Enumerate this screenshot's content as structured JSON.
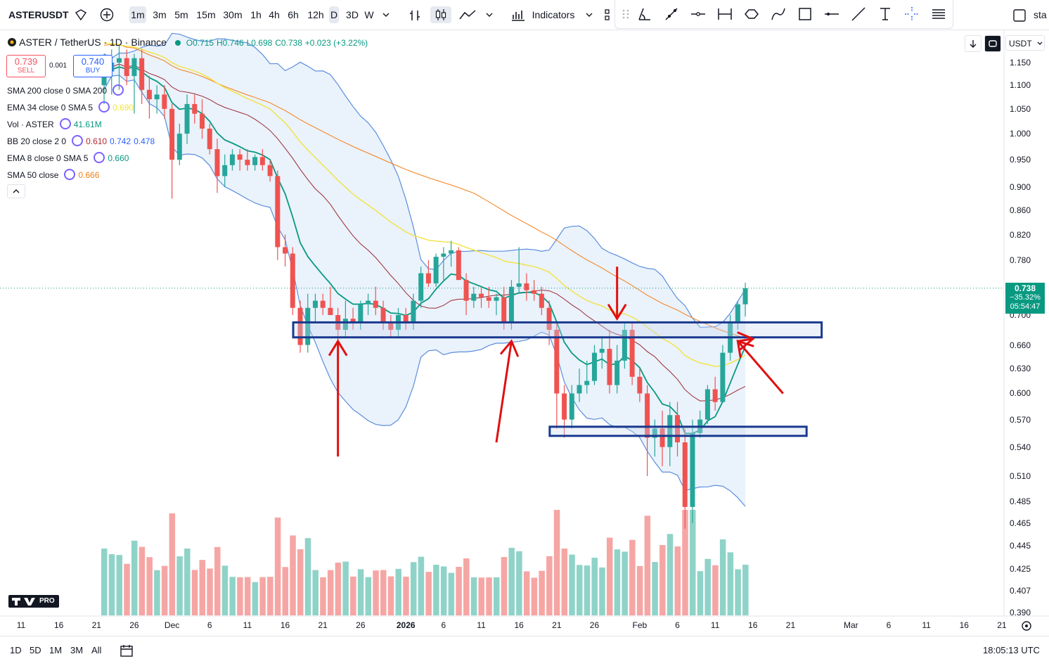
{
  "toolbar": {
    "symbol": "ASTERUSDT",
    "intervals": [
      "1m",
      "3m",
      "5m",
      "15m",
      "30m",
      "1h",
      "4h",
      "6h",
      "12h",
      "D",
      "3D",
      "W"
    ],
    "active_interval": "1m",
    "indicators_label": "Indicators",
    "right_text": "sta"
  },
  "legend": {
    "title": "ASTER / TetherUS · 1D · Binance",
    "ohlc": {
      "o": "O0.715",
      "h": "H0.746",
      "l": "L0.698",
      "c": "C0.738",
      "chg": "+0.023 (+3.22%)"
    },
    "sell": {
      "price": "0.739",
      "label": "SELL"
    },
    "spread": "0.001",
    "buy": {
      "price": "0.740",
      "label": "BUY"
    },
    "indicators": [
      {
        "name": "SMA 200 close 0 SMA 200",
        "values": [],
        "colors": []
      },
      {
        "name": "EMA 34 close 0 SMA 5",
        "values": [
          "0.690"
        ],
        "colors": [
          "#f2e33f"
        ]
      },
      {
        "name": "Vol · ASTER",
        "values": [
          "41.61M"
        ],
        "colors": [
          "#089981"
        ]
      },
      {
        "name": "BB 20 close 2 0",
        "values": [
          "0.610",
          "0.742",
          "0.478"
        ],
        "colors": [
          "#b22833",
          "#2962ff",
          "#2962ff"
        ]
      },
      {
        "name": "EMA 8 close 0 SMA 5",
        "values": [
          "0.660"
        ],
        "colors": [
          "#089981"
        ]
      },
      {
        "name": "SMA 50 close",
        "values": [
          "0.666"
        ],
        "colors": [
          "#f57f17"
        ]
      }
    ]
  },
  "right_controls": {
    "currency": "USDT"
  },
  "price_tag": {
    "price": "0.738",
    "change": "−35.32%",
    "countdown": "05:54:47"
  },
  "bottombar": {
    "ranges": [
      "1D",
      "5D",
      "1M",
      "3M",
      "All"
    ],
    "clock": "18:05:13 UTC"
  },
  "colors": {
    "up": "#26a69a",
    "down": "#ef5350",
    "band_fill": "#e3edfa",
    "band_line": "#5b8ede",
    "zone": "#1a3a8f",
    "arrow": "#e01010"
  },
  "icons": [
    "plus-icon",
    "bar-type-icon",
    "candle-icon",
    "line-icon",
    "indicators-icon",
    "trend-line-icon",
    "brush-icon",
    "measure-icon",
    "shape-icon",
    "rect-icon",
    "text-icon",
    "crosshair-icon",
    "menu-icon",
    "calendar-icon",
    "settings-icon"
  ],
  "chart_data": {
    "type": "candlestick",
    "y_axis": {
      "ticks": [
        "1.150",
        "1.100",
        "1.050",
        "1.000",
        "0.950",
        "0.900",
        "0.860",
        "0.820",
        "0.780",
        "0.700",
        "0.660",
        "0.630",
        "0.600",
        "0.570",
        "0.540",
        "0.510",
        "0.485",
        "0.465",
        "0.445",
        "0.425",
        "0.407",
        "0.390"
      ],
      "scale": "log"
    },
    "x_axis": {
      "ticks": [
        "11",
        "16",
        "21",
        "26",
        "Dec",
        "6",
        "11",
        "16",
        "21",
        "26",
        "2026",
        "6",
        "11",
        "16",
        "21",
        "26",
        "Feb",
        "6",
        "11",
        "16",
        "21",
        "Mar",
        "6",
        "11",
        "16",
        "21"
      ]
    },
    "candles": [
      {
        "date": "2025-11-22",
        "o": 1.1,
        "h": 1.17,
        "l": 1.06,
        "c": 1.13
      },
      {
        "date": "2025-11-23",
        "o": 1.13,
        "h": 1.18,
        "l": 1.08,
        "c": 1.15
      },
      {
        "date": "2025-11-24",
        "o": 1.15,
        "h": 1.19,
        "l": 1.09,
        "c": 1.16
      },
      {
        "date": "2025-11-25",
        "o": 1.16,
        "h": 1.18,
        "l": 1.1,
        "c": 1.12
      },
      {
        "date": "2025-11-26",
        "o": 1.12,
        "h": 1.17,
        "l": 1.04,
        "c": 1.16
      },
      {
        "date": "2025-11-27",
        "o": 1.16,
        "h": 1.18,
        "l": 1.06,
        "c": 1.09
      },
      {
        "date": "2025-11-28",
        "o": 1.09,
        "h": 1.12,
        "l": 1.03,
        "c": 1.07
      },
      {
        "date": "2025-11-29",
        "o": 1.07,
        "h": 1.1,
        "l": 1.04,
        "c": 1.08
      },
      {
        "date": "2025-11-30",
        "o": 1.08,
        "h": 1.1,
        "l": 1.03,
        "c": 1.05
      },
      {
        "date": "2025-12-01",
        "o": 1.05,
        "h": 1.06,
        "l": 0.88,
        "c": 0.95
      },
      {
        "date": "2025-12-02",
        "o": 0.95,
        "h": 1.02,
        "l": 0.94,
        "c": 1.0
      },
      {
        "date": "2025-12-03",
        "o": 1.0,
        "h": 1.08,
        "l": 0.98,
        "c": 1.06
      },
      {
        "date": "2025-12-04",
        "o": 1.06,
        "h": 1.08,
        "l": 1.02,
        "c": 1.04
      },
      {
        "date": "2025-12-05",
        "o": 1.04,
        "h": 1.07,
        "l": 0.99,
        "c": 1.01
      },
      {
        "date": "2025-12-06",
        "o": 1.01,
        "h": 1.02,
        "l": 0.96,
        "c": 0.97
      },
      {
        "date": "2025-12-07",
        "o": 0.97,
        "h": 0.99,
        "l": 0.89,
        "c": 0.92
      },
      {
        "date": "2025-12-08",
        "o": 0.92,
        "h": 0.96,
        "l": 0.9,
        "c": 0.94
      },
      {
        "date": "2025-12-09",
        "o": 0.94,
        "h": 0.97,
        "l": 0.93,
        "c": 0.96
      },
      {
        "date": "2025-12-10",
        "o": 0.96,
        "h": 0.97,
        "l": 0.93,
        "c": 0.95
      },
      {
        "date": "2025-12-11",
        "o": 0.95,
        "h": 0.97,
        "l": 0.93,
        "c": 0.94
      },
      {
        "date": "2025-12-12",
        "o": 0.94,
        "h": 0.96,
        "l": 0.93,
        "c": 0.955
      },
      {
        "date": "2025-12-13",
        "o": 0.955,
        "h": 0.97,
        "l": 0.93,
        "c": 0.94
      },
      {
        "date": "2025-12-14",
        "o": 0.94,
        "h": 0.95,
        "l": 0.91,
        "c": 0.92
      },
      {
        "date": "2025-12-15",
        "o": 0.92,
        "h": 0.93,
        "l": 0.78,
        "c": 0.8
      },
      {
        "date": "2025-12-16",
        "o": 0.8,
        "h": 0.82,
        "l": 0.77,
        "c": 0.79
      },
      {
        "date": "2025-12-17",
        "o": 0.79,
        "h": 0.8,
        "l": 0.7,
        "c": 0.71
      },
      {
        "date": "2025-12-18",
        "o": 0.71,
        "h": 0.72,
        "l": 0.65,
        "c": 0.66
      },
      {
        "date": "2025-12-19",
        "o": 0.66,
        "h": 0.73,
        "l": 0.65,
        "c": 0.71
      },
      {
        "date": "2025-12-20",
        "o": 0.71,
        "h": 0.73,
        "l": 0.69,
        "c": 0.72
      },
      {
        "date": "2025-12-21",
        "o": 0.72,
        "h": 0.73,
        "l": 0.7,
        "c": 0.71
      },
      {
        "date": "2025-12-22",
        "o": 0.71,
        "h": 0.74,
        "l": 0.7,
        "c": 0.7
      },
      {
        "date": "2025-12-23",
        "o": 0.7,
        "h": 0.71,
        "l": 0.66,
        "c": 0.68
      },
      {
        "date": "2025-12-24",
        "o": 0.68,
        "h": 0.72,
        "l": 0.67,
        "c": 0.695
      },
      {
        "date": "2025-12-25",
        "o": 0.695,
        "h": 0.71,
        "l": 0.68,
        "c": 0.69
      },
      {
        "date": "2025-12-26",
        "o": 0.69,
        "h": 0.72,
        "l": 0.68,
        "c": 0.715
      },
      {
        "date": "2025-12-27",
        "o": 0.715,
        "h": 0.73,
        "l": 0.7,
        "c": 0.72
      },
      {
        "date": "2025-12-28",
        "o": 0.72,
        "h": 0.74,
        "l": 0.7,
        "c": 0.71
      },
      {
        "date": "2025-12-29",
        "o": 0.71,
        "h": 0.72,
        "l": 0.68,
        "c": 0.69
      },
      {
        "date": "2025-12-30",
        "o": 0.69,
        "h": 0.7,
        "l": 0.67,
        "c": 0.68
      },
      {
        "date": "2025-12-31",
        "o": 0.68,
        "h": 0.71,
        "l": 0.67,
        "c": 0.7
      },
      {
        "date": "2026-01-01",
        "o": 0.7,
        "h": 0.71,
        "l": 0.68,
        "c": 0.69
      },
      {
        "date": "2026-01-02",
        "o": 0.69,
        "h": 0.73,
        "l": 0.68,
        "c": 0.72
      },
      {
        "date": "2026-01-03",
        "o": 0.72,
        "h": 0.77,
        "l": 0.71,
        "c": 0.76
      },
      {
        "date": "2026-01-04",
        "o": 0.76,
        "h": 0.78,
        "l": 0.74,
        "c": 0.745
      },
      {
        "date": "2026-01-05",
        "o": 0.745,
        "h": 0.79,
        "l": 0.74,
        "c": 0.785
      },
      {
        "date": "2026-01-06",
        "o": 0.785,
        "h": 0.8,
        "l": 0.75,
        "c": 0.79
      },
      {
        "date": "2026-01-07",
        "o": 0.79,
        "h": 0.81,
        "l": 0.77,
        "c": 0.795
      },
      {
        "date": "2026-01-08",
        "o": 0.795,
        "h": 0.8,
        "l": 0.75,
        "c": 0.75
      },
      {
        "date": "2026-01-09",
        "o": 0.75,
        "h": 0.76,
        "l": 0.7,
        "c": 0.72
      },
      {
        "date": "2026-01-10",
        "o": 0.72,
        "h": 0.74,
        "l": 0.71,
        "c": 0.73
      },
      {
        "date": "2026-01-11",
        "o": 0.73,
        "h": 0.74,
        "l": 0.71,
        "c": 0.725
      },
      {
        "date": "2026-01-12",
        "o": 0.725,
        "h": 0.74,
        "l": 0.71,
        "c": 0.72
      },
      {
        "date": "2026-01-13",
        "o": 0.72,
        "h": 0.73,
        "l": 0.7,
        "c": 0.725
      },
      {
        "date": "2026-01-14",
        "o": 0.725,
        "h": 0.74,
        "l": 0.68,
        "c": 0.69
      },
      {
        "date": "2026-01-15",
        "o": 0.69,
        "h": 0.75,
        "l": 0.68,
        "c": 0.74
      },
      {
        "date": "2026-01-16",
        "o": 0.74,
        "h": 0.8,
        "l": 0.73,
        "c": 0.745
      },
      {
        "date": "2026-01-17",
        "o": 0.745,
        "h": 0.76,
        "l": 0.72,
        "c": 0.735
      },
      {
        "date": "2026-01-18",
        "o": 0.735,
        "h": 0.75,
        "l": 0.72,
        "c": 0.73
      },
      {
        "date": "2026-01-19",
        "o": 0.73,
        "h": 0.74,
        "l": 0.7,
        "c": 0.71
      },
      {
        "date": "2026-01-20",
        "o": 0.71,
        "h": 0.72,
        "l": 0.66,
        "c": 0.68
      },
      {
        "date": "2026-01-21",
        "o": 0.68,
        "h": 0.69,
        "l": 0.56,
        "c": 0.6
      },
      {
        "date": "2026-01-22",
        "o": 0.6,
        "h": 0.61,
        "l": 0.55,
        "c": 0.57
      },
      {
        "date": "2026-01-23",
        "o": 0.57,
        "h": 0.61,
        "l": 0.56,
        "c": 0.6
      },
      {
        "date": "2026-01-24",
        "o": 0.6,
        "h": 0.63,
        "l": 0.59,
        "c": 0.61
      },
      {
        "date": "2026-01-25",
        "o": 0.61,
        "h": 0.64,
        "l": 0.6,
        "c": 0.615
      },
      {
        "date": "2026-01-26",
        "o": 0.615,
        "h": 0.66,
        "l": 0.61,
        "c": 0.65
      },
      {
        "date": "2026-01-27",
        "o": 0.65,
        "h": 0.67,
        "l": 0.63,
        "c": 0.655
      },
      {
        "date": "2026-01-28",
        "o": 0.655,
        "h": 0.68,
        "l": 0.6,
        "c": 0.61
      },
      {
        "date": "2026-01-29",
        "o": 0.61,
        "h": 0.66,
        "l": 0.6,
        "c": 0.64
      },
      {
        "date": "2026-01-30",
        "o": 0.64,
        "h": 0.69,
        "l": 0.63,
        "c": 0.68
      },
      {
        "date": "2026-01-31",
        "o": 0.68,
        "h": 0.69,
        "l": 0.61,
        "c": 0.62
      },
      {
        "date": "2026-02-01",
        "o": 0.62,
        "h": 0.63,
        "l": 0.59,
        "c": 0.6
      },
      {
        "date": "2026-02-02",
        "o": 0.6,
        "h": 0.61,
        "l": 0.51,
        "c": 0.55
      },
      {
        "date": "2026-02-03",
        "o": 0.55,
        "h": 0.57,
        "l": 0.53,
        "c": 0.56
      },
      {
        "date": "2026-02-04",
        "o": 0.56,
        "h": 0.58,
        "l": 0.52,
        "c": 0.54
      },
      {
        "date": "2026-02-05",
        "o": 0.54,
        "h": 0.59,
        "l": 0.52,
        "c": 0.575
      },
      {
        "date": "2026-02-06",
        "o": 0.575,
        "h": 0.59,
        "l": 0.53,
        "c": 0.545
      },
      {
        "date": "2026-02-07",
        "o": 0.545,
        "h": 0.56,
        "l": 0.46,
        "c": 0.48
      },
      {
        "date": "2026-02-08",
        "o": 0.48,
        "h": 0.57,
        "l": 0.465,
        "c": 0.555
      },
      {
        "date": "2026-02-09",
        "o": 0.555,
        "h": 0.58,
        "l": 0.55,
        "c": 0.57
      },
      {
        "date": "2026-02-10",
        "o": 0.57,
        "h": 0.61,
        "l": 0.565,
        "c": 0.605
      },
      {
        "date": "2026-02-11",
        "o": 0.605,
        "h": 0.62,
        "l": 0.58,
        "c": 0.59
      },
      {
        "date": "2026-02-12",
        "o": 0.59,
        "h": 0.66,
        "l": 0.59,
        "c": 0.65
      },
      {
        "date": "2026-02-13",
        "o": 0.65,
        "h": 0.7,
        "l": 0.64,
        "c": 0.69
      },
      {
        "date": "2026-02-14",
        "o": 0.69,
        "h": 0.72,
        "l": 0.68,
        "c": 0.715
      },
      {
        "date": "2026-02-15",
        "o": 0.715,
        "h": 0.746,
        "l": 0.698,
        "c": 0.738
      }
    ],
    "volume_scale": "relative",
    "indicators": {
      "bollinger": {
        "period": 20,
        "mult": 2
      },
      "ema8": true,
      "ema34": true,
      "sma50": true
    },
    "annotations": {
      "zones": [
        {
          "top": 0.69,
          "bottom": 0.67,
          "from": "2025-12-18",
          "to": "2026-02-24"
        },
        {
          "top": 0.562,
          "bottom": 0.552,
          "from": "2026-01-21",
          "to": "2026-02-22"
        }
      ],
      "arrows": [
        {
          "from": [
            "2025-12-23",
            0.53
          ],
          "to": [
            "2025-12-23",
            0.665
          ]
        },
        {
          "from": [
            "2026-01-13",
            0.545
          ],
          "to": [
            "2026-01-15",
            0.665
          ]
        },
        {
          "from": [
            "2026-01-29",
            0.77
          ],
          "to": [
            "2026-01-29",
            0.695
          ]
        },
        {
          "from": [
            "2026-02-20",
            0.6
          ],
          "to": [
            "2026-02-14",
            0.665
          ]
        },
        {
          "from": [
            "2026-02-14",
            0.665
          ],
          "to": [
            "2026-02-16",
            0.668
          ]
        }
      ]
    }
  }
}
